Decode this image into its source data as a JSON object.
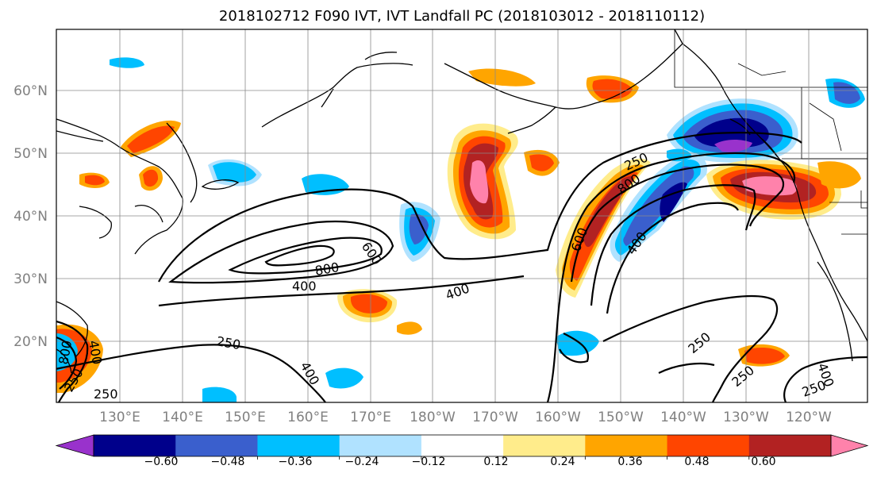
{
  "title": "2018102712 F090 IVT, IVT Landfall PC (2018103012 - 2018110112)",
  "lat_labels": [
    "60°N",
    "50°N",
    "40°N",
    "30°N",
    "20°N"
  ],
  "lon_labels": [
    "130°E",
    "140°E",
    "150°E",
    "160°E",
    "170°E",
    "180°W",
    "170°W",
    "160°W",
    "150°W",
    "140°W",
    "130°W",
    "120°W"
  ],
  "contour_labels": [
    "600",
    "800",
    "400",
    "400",
    "250",
    "250",
    "400",
    "250",
    "800",
    "600",
    "400",
    "250",
    "250",
    "400",
    "250",
    "400",
    "800",
    "250"
  ],
  "colorbar": {
    "tick_labels": [
      "−0.60",
      "−0.48",
      "−0.36",
      "−0.24",
      "−0.12",
      "0.12",
      "0.24",
      "0.36",
      "0.48",
      "0.60"
    ],
    "colors": [
      "#9932cc",
      "#00008b",
      "#3a5fcd",
      "#00bfff",
      "#b0e2ff",
      "#ffffff",
      "#ffec8b",
      "#ffa500",
      "#ff4500",
      "#b22222",
      "#ff82ab"
    ]
  }
}
